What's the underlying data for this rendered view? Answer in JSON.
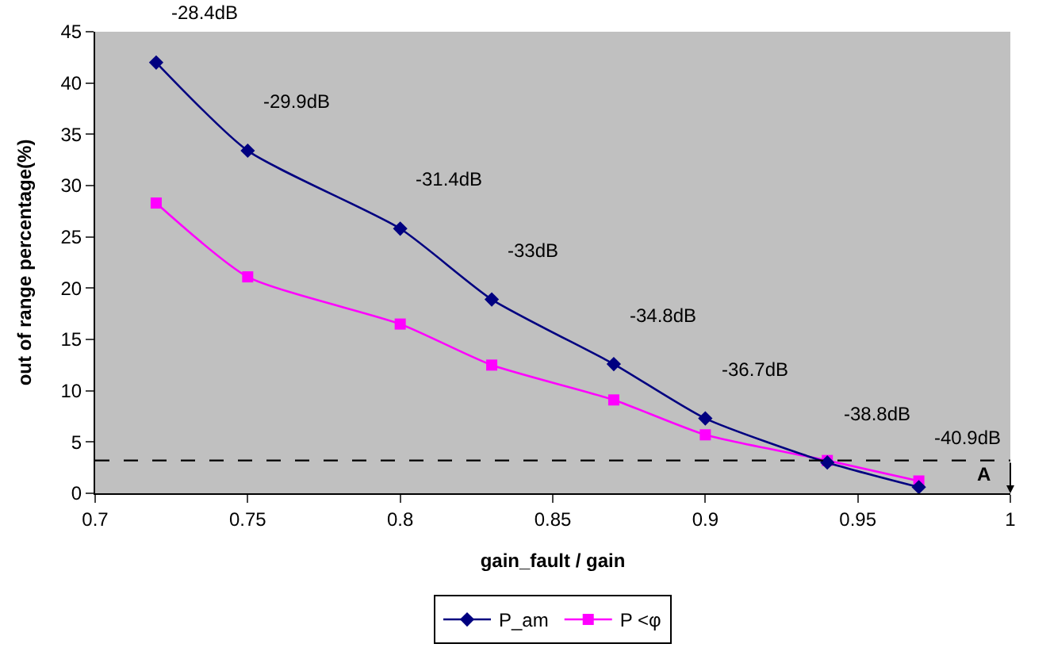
{
  "chart_data": {
    "type": "line",
    "xlabel": "gain_fault / gain",
    "ylabel": "out of range percentage(%)",
    "x": [
      0.72,
      0.75,
      0.8,
      0.83,
      0.87,
      0.9,
      0.94,
      0.97
    ],
    "series": [
      {
        "name": "P_am",
        "color": "#000080",
        "marker": "diamond",
        "values": [
          42,
          33.4,
          25.8,
          18.9,
          12.6,
          7.3,
          3.0,
          0.6
        ]
      },
      {
        "name": "P <φ",
        "color": "#ff00ff",
        "marker": "square",
        "values": [
          28.3,
          21.1,
          16.5,
          12.5,
          9.1,
          5.7,
          3.2,
          1.2
        ]
      }
    ],
    "xlim": [
      0.7,
      1
    ],
    "xticks": [
      0.7,
      0.75,
      0.8,
      0.85,
      0.9,
      0.95,
      1
    ],
    "ylim": [
      0,
      45
    ],
    "yticks": [
      0,
      5,
      10,
      15,
      20,
      25,
      30,
      35,
      40,
      45
    ],
    "ref_lines": [
      {
        "axis": "y",
        "value": 3.2,
        "label": "A",
        "color": "#000000",
        "line_style": "dashed"
      }
    ],
    "annotations": [
      {
        "text": "-28.4dB",
        "x": 0.72,
        "y": 42
      },
      {
        "text": "-29.9dB",
        "x": 0.75,
        "y": 33.4
      },
      {
        "text": "-31.4dB",
        "x": 0.8,
        "y": 25.8
      },
      {
        "text": "-33dB",
        "x": 0.83,
        "y": 18.9
      },
      {
        "text": "-34.8dB",
        "x": 0.87,
        "y": 12.6
      },
      {
        "text": "-36.7dB",
        "x": 0.9,
        "y": 7.3
      },
      {
        "text": "-38.8dB",
        "x": 0.94,
        "y": 3.0
      },
      {
        "text": "-40.9dB",
        "x": 0.97,
        "y": 0.6
      }
    ],
    "grid": false,
    "legend": "bottom",
    "line_style": "solid"
  }
}
